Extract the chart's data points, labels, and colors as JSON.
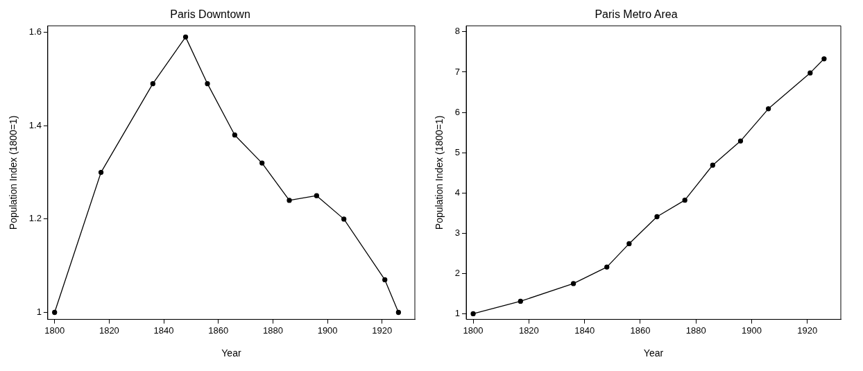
{
  "chart_data": [
    {
      "type": "line",
      "title": "Paris Downtown",
      "xlabel": "Year",
      "ylabel": "Population Index (1800=1)",
      "x": [
        1800,
        1817,
        1836,
        1848,
        1856,
        1866,
        1876,
        1886,
        1896,
        1906,
        1921,
        1926
      ],
      "series": [
        {
          "color": "#000000",
          "values": [
            1.0,
            1.3,
            1.49,
            1.59,
            1.49,
            1.38,
            1.32,
            1.24,
            1.25,
            1.2,
            1.07,
            1.0
          ]
        }
      ],
      "xlim": [
        1797.5,
        1932
      ],
      "xticks": [
        1800,
        1820,
        1840,
        1860,
        1880,
        1900,
        1920
      ],
      "ylim": [
        0.985,
        1.614
      ],
      "yticks": [
        1,
        1.2,
        1.4,
        1.6
      ],
      "grid": false,
      "legend": false,
      "marker": "circle",
      "line_style": "solid"
    },
    {
      "type": "line",
      "title": "Paris Metro Area",
      "xlabel": "Year",
      "ylabel": "Population Index (1800=1)",
      "x": [
        1800,
        1817,
        1836,
        1848,
        1856,
        1866,
        1876,
        1886,
        1896,
        1906,
        1921,
        1926
      ],
      "series": [
        {
          "color": "#000000",
          "values": [
            1.0,
            1.31,
            1.75,
            2.16,
            2.74,
            3.41,
            3.82,
            4.69,
            5.29,
            6.09,
            6.98,
            7.33
          ]
        }
      ],
      "xlim": [
        1797.5,
        1932
      ],
      "xticks": [
        1800,
        1820,
        1840,
        1860,
        1880,
        1900,
        1920
      ],
      "ylim": [
        0.86,
        8.15
      ],
      "yticks": [
        1,
        2,
        3,
        4,
        5,
        6,
        7,
        8
      ],
      "grid": false,
      "legend": false,
      "marker": "circle",
      "line_style": "solid"
    }
  ]
}
